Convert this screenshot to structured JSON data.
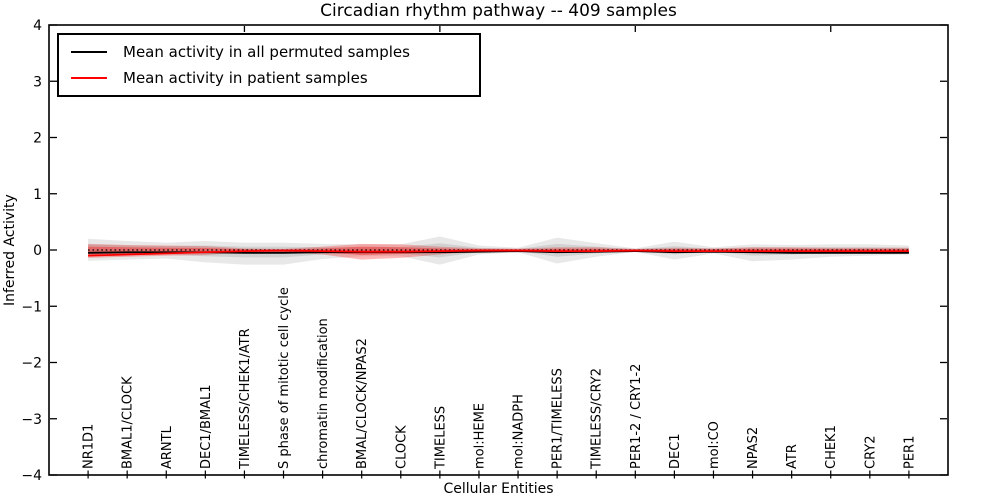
{
  "chart_data": {
    "type": "line",
    "title": "Circadian rhythm pathway -- 409 samples",
    "xlabel": "Cellular Entities",
    "ylabel": "Inferred Activity",
    "xlim": [
      -1,
      22
    ],
    "ylim": [
      -4,
      4
    ],
    "grid": false,
    "legend_position": "upper left",
    "ytick_values": [
      4,
      3,
      2,
      1,
      0,
      -1,
      -2,
      -3,
      -4
    ],
    "ytick_labels": [
      "4",
      "3",
      "2",
      "1",
      "0",
      "−1",
      "−2",
      "−3",
      "−4"
    ],
    "top_xtick_positions": [
      4,
      9,
      14,
      19
    ],
    "categories": [
      "NR1D1",
      "BMAL1/CLOCK",
      "ARNTL",
      "DEC1/BMAL1",
      "TIMELESS/CHEK1/ATR",
      "S phase of mitotic cell cycle",
      "chromatin modification",
      "BMAL/CLOCK/NPAS2",
      "CLOCK",
      "TIMELESS",
      "mol:HEME",
      "mol:NADPH",
      "PER1/TIMELESS",
      "TIMELESS/CRY2",
      "PER1-2 / CRY1-2",
      "DEC1",
      "mol:CO",
      "NPAS2",
      "ATR",
      "CHEK1",
      "CRY2",
      "PER1"
    ],
    "zero_reference_line": {
      "y": 0,
      "style": "dotted",
      "color": "#000000"
    },
    "series": [
      {
        "name": "Mean activity in all permuted samples",
        "color": "#000000",
        "fill_color": "#808080",
        "fill_opacity_outer": 0.18,
        "fill_opacity_inner": 0.22,
        "mean": [
          -0.05,
          -0.04,
          -0.04,
          -0.04,
          -0.05,
          -0.05,
          -0.04,
          -0.04,
          -0.04,
          -0.04,
          -0.03,
          -0.02,
          -0.04,
          -0.03,
          -0.02,
          -0.04,
          -0.03,
          -0.04,
          -0.05,
          -0.05,
          -0.05,
          -0.05
        ],
        "band_outer": {
          "upper": [
            0.2,
            0.16,
            0.13,
            0.16,
            0.13,
            0.13,
            0.11,
            0.1,
            0.1,
            0.24,
            0.08,
            0.04,
            0.22,
            0.12,
            0.03,
            0.15,
            0.05,
            0.1,
            0.09,
            0.1,
            0.1,
            0.08
          ],
          "lower": [
            -0.19,
            -0.17,
            -0.15,
            -0.22,
            -0.26,
            -0.26,
            -0.16,
            -0.11,
            -0.11,
            -0.26,
            -0.08,
            -0.04,
            -0.24,
            -0.12,
            -0.03,
            -0.17,
            -0.06,
            -0.2,
            -0.17,
            -0.12,
            -0.1,
            -0.08
          ]
        },
        "band_inner": {
          "upper": [
            0.1,
            0.08,
            0.07,
            0.08,
            0.06,
            0.06,
            0.05,
            0.05,
            0.05,
            0.12,
            0.04,
            0.02,
            0.11,
            0.06,
            0.015,
            0.07,
            0.025,
            0.05,
            0.045,
            0.05,
            0.05,
            0.04
          ],
          "lower": [
            -0.1,
            -0.09,
            -0.08,
            -0.11,
            -0.13,
            -0.13,
            -0.08,
            -0.06,
            -0.06,
            -0.13,
            -0.04,
            -0.02,
            -0.12,
            -0.06,
            -0.015,
            -0.08,
            -0.03,
            -0.1,
            -0.08,
            -0.06,
            -0.05,
            -0.04
          ]
        }
      },
      {
        "name": "Mean activity in patient samples",
        "color": "#ff0000",
        "fill_color": "#ff0000",
        "fill_opacity_outer": 0.28,
        "fill_opacity_inner": 0.35,
        "mean": [
          -0.1,
          -0.08,
          -0.06,
          -0.04,
          -0.02,
          -0.01,
          -0.02,
          -0.03,
          -0.03,
          -0.02,
          -0.01,
          -0.01,
          -0.02,
          -0.02,
          -0.01,
          -0.02,
          -0.02,
          -0.02,
          -0.02,
          -0.02,
          -0.02,
          -0.02
        ],
        "band_outer": {
          "upper": [
            0.11,
            0.09,
            0.08,
            0.07,
            0.03,
            0.02,
            0.06,
            0.11,
            0.1,
            0.06,
            0.03,
            0.025,
            0.05,
            0.05,
            0.02,
            0.04,
            0.03,
            0.05,
            0.05,
            0.04,
            0.04,
            0.04
          ],
          "lower": [
            -0.14,
            -0.12,
            -0.1,
            -0.09,
            -0.04,
            -0.03,
            -0.08,
            -0.17,
            -0.14,
            -0.08,
            -0.03,
            -0.03,
            -0.05,
            -0.05,
            -0.02,
            -0.05,
            -0.03,
            -0.06,
            -0.06,
            -0.05,
            -0.04,
            -0.04
          ]
        },
        "band_inner": {
          "upper": [
            0.06,
            0.05,
            0.04,
            0.035,
            0.015,
            0.01,
            0.03,
            0.06,
            0.05,
            0.03,
            0.015,
            0.012,
            0.025,
            0.025,
            0.01,
            0.02,
            0.015,
            0.025,
            0.025,
            0.02,
            0.02,
            0.02
          ],
          "lower": [
            -0.08,
            -0.065,
            -0.05,
            -0.045,
            -0.02,
            -0.015,
            -0.04,
            -0.09,
            -0.07,
            -0.04,
            -0.015,
            -0.015,
            -0.025,
            -0.025,
            -0.01,
            -0.025,
            -0.015,
            -0.03,
            -0.03,
            -0.025,
            -0.02,
            -0.02
          ]
        }
      }
    ]
  }
}
